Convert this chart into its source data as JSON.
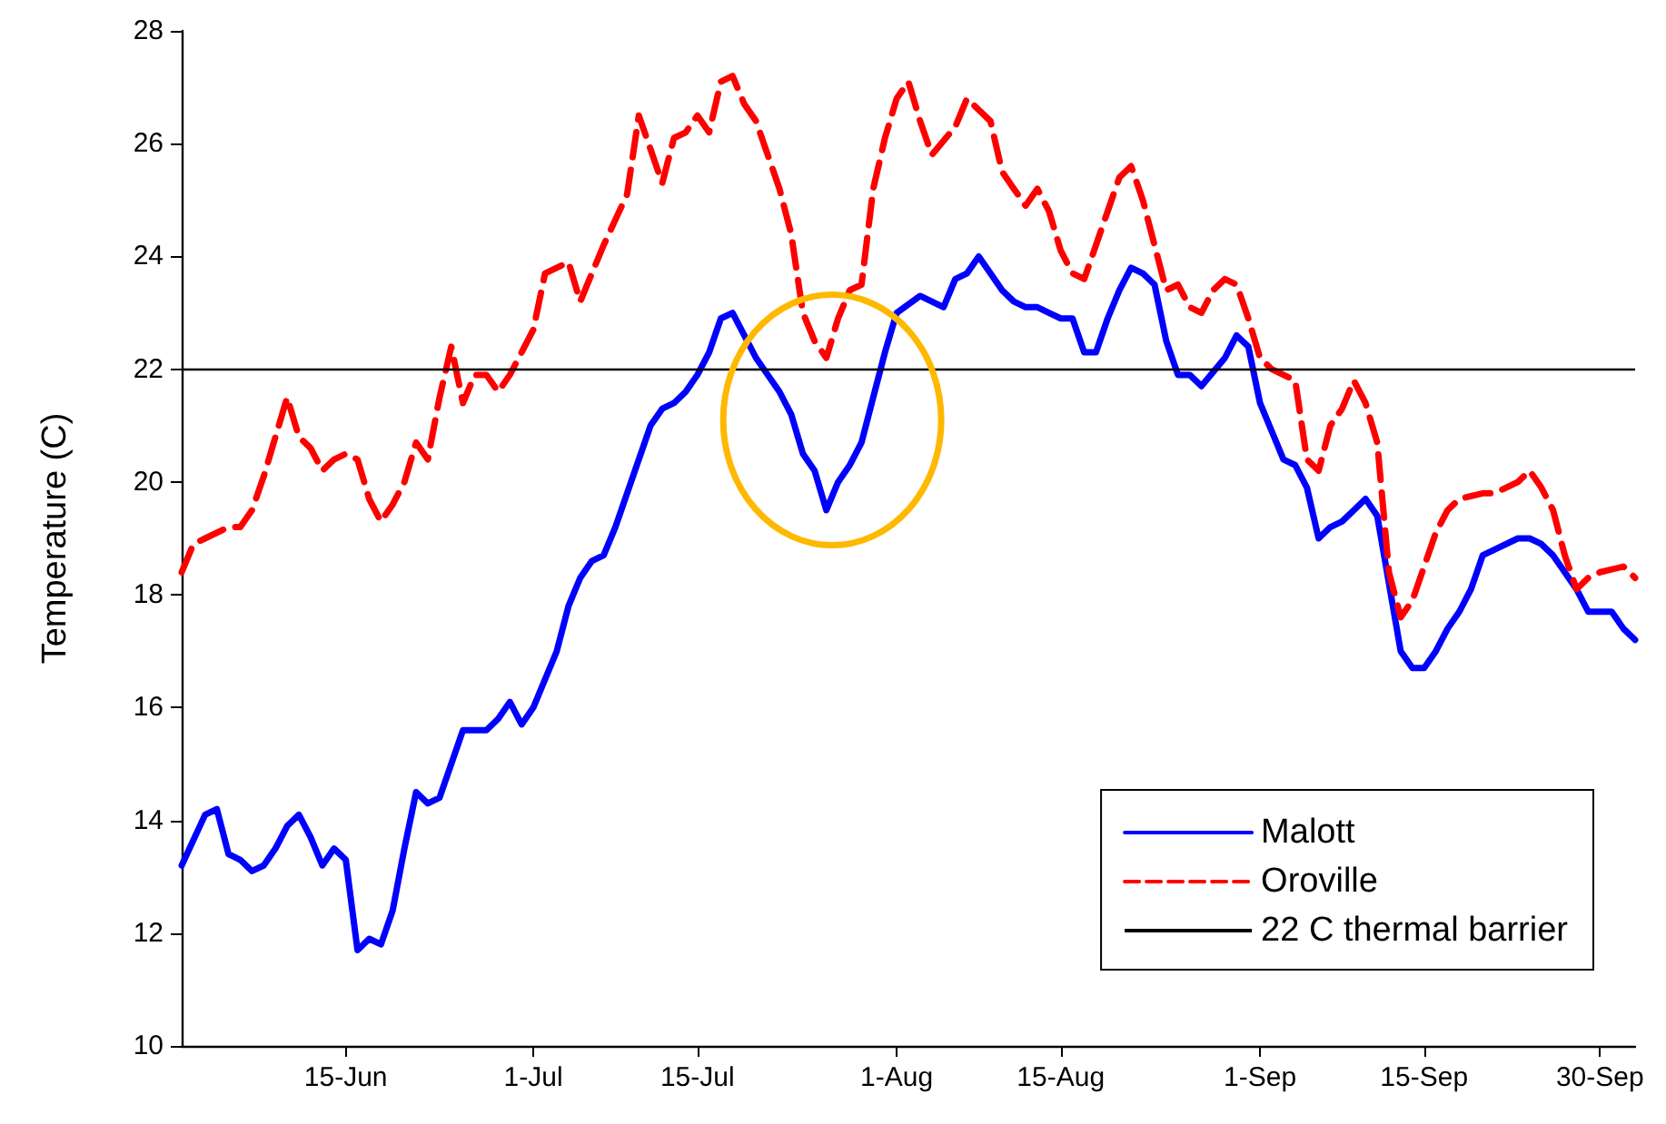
{
  "chart_data": {
    "type": "line",
    "ylabel": "Temperature (C)",
    "legend": "bottom right",
    "grid": false,
    "marker": "none",
    "xlim": [
      "--06-01",
      "--10-03"
    ],
    "ylim": [
      10,
      28
    ],
    "yticks": [
      10,
      12,
      14,
      16,
      18,
      20,
      22,
      24,
      26,
      28
    ],
    "xticks": [
      {
        "value": "--06-15",
        "label": "15-Jun"
      },
      {
        "value": "--07-01",
        "label": "1-Jul"
      },
      {
        "value": "--07-15",
        "label": "15-Jul"
      },
      {
        "value": "--08-01",
        "label": "1-Aug"
      },
      {
        "value": "--08-15",
        "label": "15-Aug"
      },
      {
        "value": "--09-01",
        "label": "1-Sep"
      },
      {
        "value": "--09-15",
        "label": "15-Sep"
      },
      {
        "value": "--09-30",
        "label": "30-Sep"
      }
    ],
    "series": [
      {
        "name": "Malott",
        "color": "#0000ff",
        "line_style": "solid",
        "x": [
          "--06-01",
          "--06-03",
          "--06-04",
          "--06-05",
          "--06-06",
          "--06-07",
          "--06-08",
          "--06-09",
          "--06-10",
          "--06-11",
          "--06-12",
          "--06-13",
          "--06-14",
          "--06-15",
          "--06-16",
          "--06-17",
          "--06-18",
          "--06-19",
          "--06-20",
          "--06-21",
          "--06-22",
          "--06-23",
          "--06-25",
          "--06-27",
          "--06-28",
          "--06-29",
          "--06-30",
          "--07-01",
          "--07-03",
          "--07-04",
          "--07-05",
          "--07-06",
          "--07-07",
          "--07-08",
          "--07-09",
          "--07-10",
          "--07-11",
          "--07-12",
          "--07-13",
          "--07-14",
          "--07-15",
          "--07-16",
          "--07-17",
          "--07-18",
          "--07-19",
          "--07-20",
          "--07-21",
          "--07-22",
          "--07-23",
          "--07-24",
          "--07-25",
          "--07-26",
          "--07-27",
          "--07-28",
          "--07-29",
          "--07-30",
          "--07-31",
          "--08-01",
          "--08-03",
          "--08-05",
          "--08-06",
          "--08-07",
          "--08-08",
          "--08-09",
          "--08-10",
          "--08-11",
          "--08-12",
          "--08-13",
          "--08-14",
          "--08-15",
          "--08-16",
          "--08-17",
          "--08-18",
          "--08-19",
          "--08-20",
          "--08-21",
          "--08-22",
          "--08-23",
          "--08-24",
          "--08-25",
          "--08-26",
          "--08-27",
          "--08-29",
          "--08-30",
          "--08-31",
          "--09-01",
          "--09-02",
          "--09-03",
          "--09-04",
          "--09-05",
          "--09-06",
          "--09-07",
          "--09-08",
          "--09-09",
          "--09-10",
          "--09-11",
          "--09-12",
          "--09-13",
          "--09-14",
          "--09-15",
          "--09-16",
          "--09-17",
          "--09-18",
          "--09-19",
          "--09-20",
          "--09-21",
          "--09-23",
          "--09-24",
          "--09-25",
          "--09-26",
          "--09-27",
          "--09-28",
          "--09-29",
          "--09-30",
          "--10-01",
          "--10-02",
          "--10-03"
        ],
        "values": [
          13.2,
          14.1,
          14.2,
          13.4,
          13.3,
          13.1,
          13.2,
          13.5,
          13.9,
          14.1,
          13.7,
          13.2,
          13.5,
          13.3,
          11.7,
          11.9,
          11.8,
          12.4,
          13.5,
          14.5,
          14.3,
          14.4,
          15.6,
          15.6,
          15.8,
          16.1,
          15.7,
          16.0,
          17.0,
          17.8,
          18.3,
          18.6,
          18.7,
          19.2,
          19.8,
          20.4,
          21.0,
          21.3,
          21.4,
          21.6,
          21.9,
          22.3,
          22.9,
          23.0,
          22.6,
          22.2,
          21.9,
          21.6,
          21.2,
          20.5,
          20.2,
          19.5,
          20.0,
          20.3,
          20.7,
          21.5,
          22.3,
          23.0,
          23.3,
          23.1,
          23.6,
          23.7,
          24.0,
          23.7,
          23.4,
          23.2,
          23.1,
          23.1,
          23.0,
          22.9,
          22.9,
          22.3,
          22.3,
          22.9,
          23.4,
          23.8,
          23.7,
          23.5,
          22.5,
          21.9,
          21.9,
          21.7,
          22.2,
          22.6,
          22.4,
          21.4,
          20.9,
          20.4,
          20.3,
          19.9,
          19.0,
          19.2,
          19.3,
          19.5,
          19.7,
          19.4,
          18.2,
          17.0,
          16.7,
          16.7,
          17.0,
          17.4,
          17.7,
          18.1,
          18.7,
          18.8,
          19.0,
          19.0,
          18.9,
          18.7,
          18.4,
          18.1,
          17.7,
          17.7,
          17.7,
          17.4,
          17.2
        ]
      },
      {
        "name": "Oroville",
        "color": "#ff0000",
        "line_style": "dashed",
        "x": [
          "--06-01",
          "--06-02",
          "--06-03",
          "--06-05",
          "--06-06",
          "--06-07",
          "--06-08",
          "--06-09",
          "--06-10",
          "--06-11",
          "--06-12",
          "--06-13",
          "--06-14",
          "--06-15",
          "--06-16",
          "--06-17",
          "--06-18",
          "--06-19",
          "--06-20",
          "--06-21",
          "--06-22",
          "--06-23",
          "--06-24",
          "--06-25",
          "--06-26",
          "--06-27",
          "--06-28",
          "--06-29",
          "--06-30",
          "--07-01",
          "--07-02",
          "--07-04",
          "--07-05",
          "--07-06",
          "--07-07",
          "--07-09",
          "--07-10",
          "--07-11",
          "--07-12",
          "--07-13",
          "--07-14",
          "--07-15",
          "--07-16",
          "--07-17",
          "--07-18",
          "--07-19",
          "--07-20",
          "--07-21",
          "--07-22",
          "--07-23",
          "--07-24",
          "--07-25",
          "--07-26",
          "--07-27",
          "--07-28",
          "--07-29",
          "--07-30",
          "--07-31",
          "--08-01",
          "--08-02",
          "--08-03",
          "--08-04",
          "--08-06",
          "--08-07",
          "--08-08",
          "--08-09",
          "--08-10",
          "--08-11",
          "--08-12",
          "--08-13",
          "--08-14",
          "--08-15",
          "--08-16",
          "--08-17",
          "--08-18",
          "--08-19",
          "--08-20",
          "--08-21",
          "--08-22",
          "--08-23",
          "--08-24",
          "--08-25",
          "--08-26",
          "--08-27",
          "--08-28",
          "--08-29",
          "--08-30",
          "--08-31",
          "--09-01",
          "--09-02",
          "--09-03",
          "--09-04",
          "--09-05",
          "--09-06",
          "--09-07",
          "--09-08",
          "--09-09",
          "--09-10",
          "--09-11",
          "--09-12",
          "--09-13",
          "--09-14",
          "--09-15",
          "--09-16",
          "--09-17",
          "--09-18",
          "--09-20",
          "--09-21",
          "--09-22",
          "--09-23",
          "--09-24",
          "--09-25",
          "--09-26",
          "--09-27",
          "--09-28",
          "--09-29",
          "--09-30",
          "--10-02",
          "--10-03"
        ],
        "values": [
          18.4,
          18.9,
          19.0,
          19.2,
          19.2,
          19.5,
          20.1,
          20.8,
          21.5,
          20.8,
          20.6,
          20.2,
          20.4,
          20.5,
          20.4,
          19.7,
          19.3,
          19.6,
          20.0,
          20.7,
          20.4,
          21.5,
          22.4,
          21.4,
          21.9,
          21.9,
          21.6,
          21.9,
          22.3,
          22.7,
          23.7,
          23.9,
          23.2,
          23.7,
          24.2,
          25.1,
          26.5,
          25.9,
          25.3,
          26.1,
          26.2,
          26.5,
          26.2,
          27.1,
          27.2,
          26.7,
          26.4,
          25.8,
          25.2,
          24.4,
          23.0,
          22.5,
          22.2,
          22.9,
          23.4,
          23.5,
          25.2,
          26.1,
          26.8,
          27.1,
          26.4,
          25.8,
          26.3,
          26.8,
          26.6,
          26.4,
          25.5,
          25.2,
          24.9,
          25.2,
          24.8,
          24.1,
          23.7,
          23.6,
          24.2,
          24.8,
          25.4,
          25.6,
          25.0,
          24.2,
          23.4,
          23.5,
          23.1,
          23.0,
          23.4,
          23.6,
          23.5,
          22.9,
          22.2,
          22.0,
          21.9,
          21.8,
          20.4,
          20.2,
          21.0,
          21.3,
          21.8,
          21.4,
          20.7,
          18.4,
          17.6,
          17.9,
          18.5,
          19.1,
          19.5,
          19.7,
          19.8,
          19.8,
          19.9,
          20.0,
          20.2,
          19.9,
          19.5,
          18.7,
          18.1,
          18.3,
          18.4,
          18.5,
          18.3
        ]
      }
    ],
    "ref_lines": [
      {
        "axis": "y",
        "value": 22,
        "label": "22 C thermal barrier",
        "color": "#000000",
        "line_style": "solid"
      }
    ]
  }
}
